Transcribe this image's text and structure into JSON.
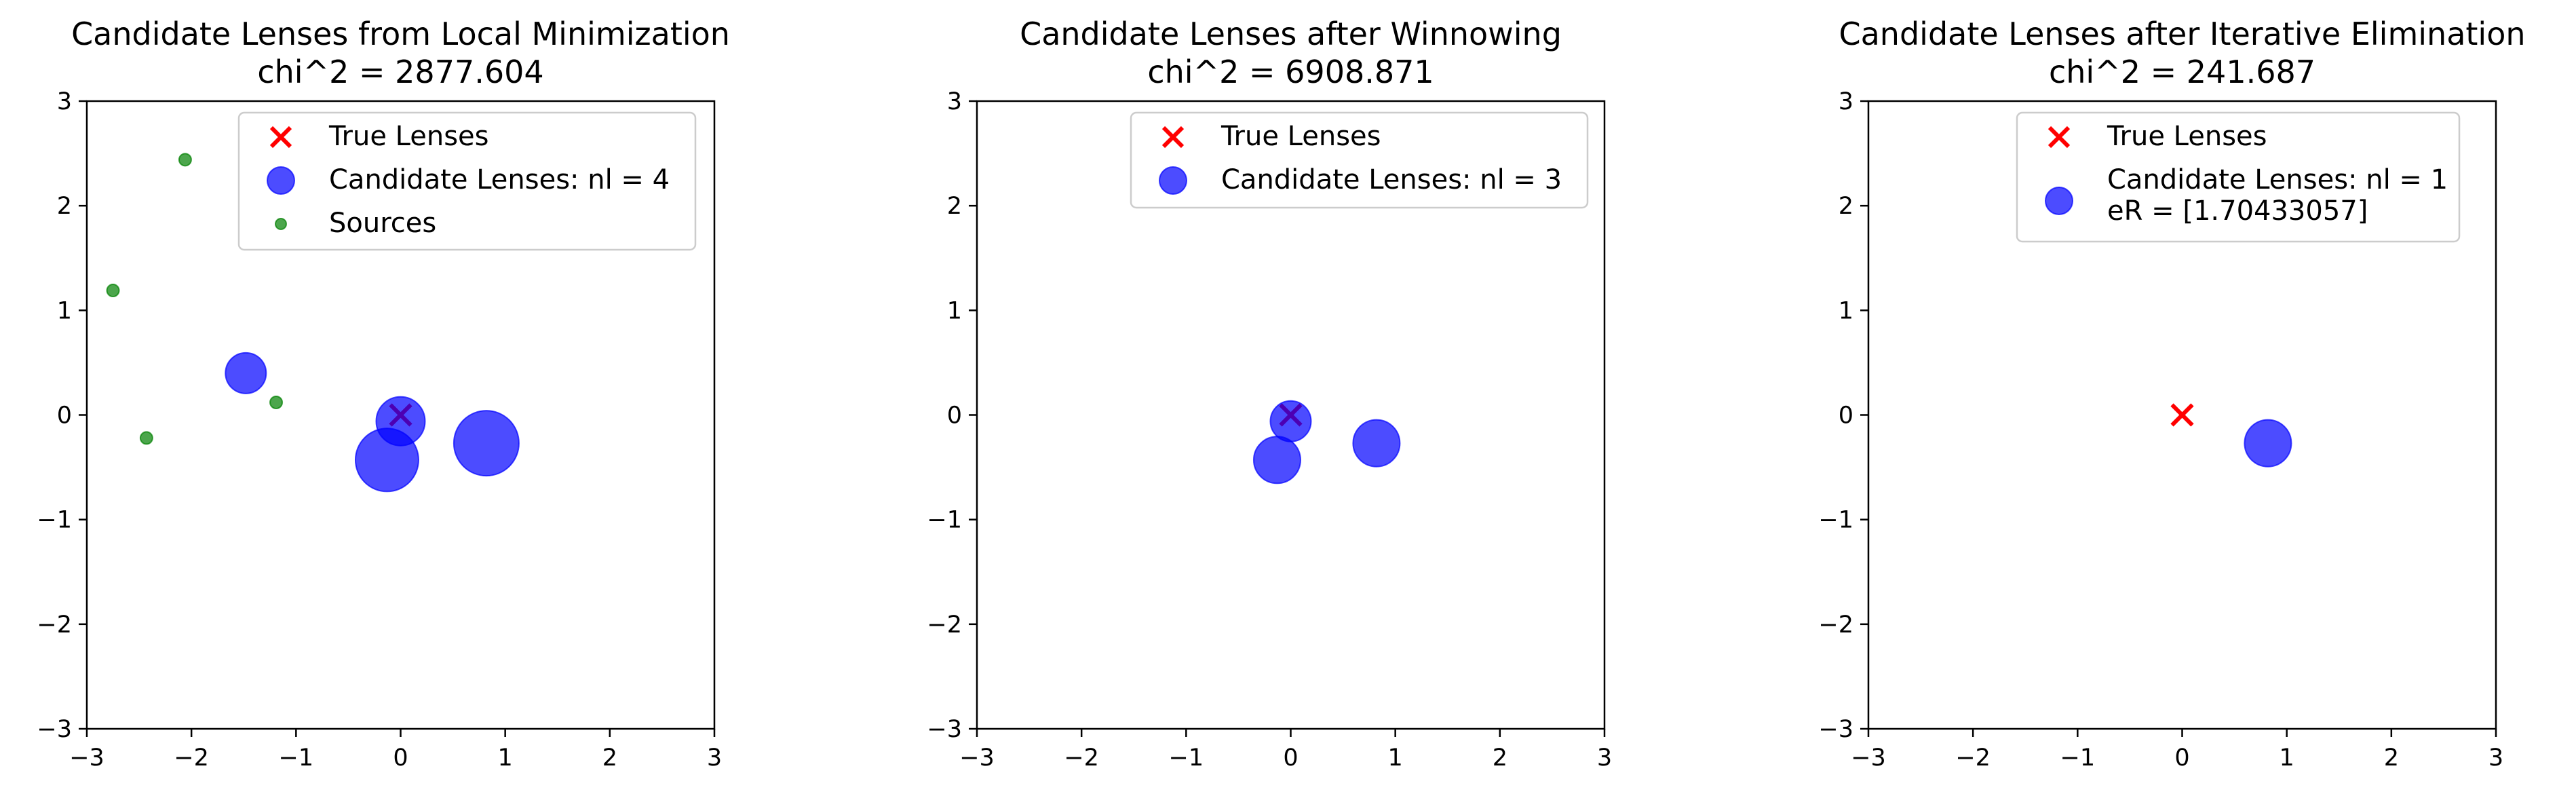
{
  "chart_data": [
    {
      "type": "scatter",
      "title": "Candidate Lenses from Local Minimization",
      "subtitle": "chi^2 = 2877.604",
      "xlim": [
        -3,
        3
      ],
      "ylim": [
        -3,
        3
      ],
      "xticks": [
        "−3",
        "−2",
        "−1",
        "0",
        "1",
        "2",
        "3"
      ],
      "yticks": [
        "−3",
        "−2",
        "−1",
        "0",
        "1",
        "2",
        "3"
      ],
      "grid": false,
      "legend_position": "top-right",
      "series": [
        {
          "name": "True Lenses",
          "marker": "x",
          "color": "#ff0000",
          "points": [
            {
              "x": 0.0,
              "y": 0.0
            }
          ]
        },
        {
          "name": "Candidate Lenses: nl = 4",
          "marker": "circle",
          "color": "#0000ff",
          "opacity": 0.7,
          "points": [
            {
              "x": -1.48,
              "y": 0.4,
              "size": 0.4
            },
            {
              "x": -0.13,
              "y": -0.43,
              "size": 0.95
            },
            {
              "x": 0.0,
              "y": -0.06,
              "size": 0.6
            },
            {
              "x": 0.82,
              "y": -0.27,
              "size": 1.0
            }
          ]
        },
        {
          "name": "Sources",
          "marker": "circle",
          "color": "#008000",
          "opacity": 0.7,
          "points": [
            {
              "x": -2.06,
              "y": 2.44
            },
            {
              "x": -2.75,
              "y": 1.19
            },
            {
              "x": -1.19,
              "y": 0.12
            },
            {
              "x": -2.43,
              "y": -0.22
            }
          ]
        }
      ]
    },
    {
      "type": "scatter",
      "title": "Candidate Lenses after Winnowing",
      "subtitle": "chi^2 = 6908.871",
      "xlim": [
        -3,
        3
      ],
      "ylim": [
        -3,
        3
      ],
      "xticks": [
        "−3",
        "−2",
        "−1",
        "0",
        "1",
        "2",
        "3"
      ],
      "yticks": [
        "−3",
        "−2",
        "−1",
        "0",
        "1",
        "2",
        "3"
      ],
      "grid": false,
      "legend_position": "top-right",
      "series": [
        {
          "name": "True Lenses",
          "marker": "x",
          "color": "#ff0000",
          "points": [
            {
              "x": 0.0,
              "y": 0.0
            }
          ]
        },
        {
          "name": "Candidate Lenses: nl = 3",
          "marker": "circle",
          "color": "#0000ff",
          "opacity": 0.7,
          "points": [
            {
              "x": -0.13,
              "y": -0.43,
              "size": 0.55
            },
            {
              "x": 0.0,
              "y": -0.06,
              "size": 0.4
            },
            {
              "x": 0.82,
              "y": -0.27,
              "size": 0.55
            }
          ]
        }
      ]
    },
    {
      "type": "scatter",
      "title": "Candidate Lenses after Iterative Elimination",
      "subtitle": "chi^2 = 241.687",
      "xlim": [
        -3,
        3
      ],
      "ylim": [
        -3,
        3
      ],
      "xticks": [
        "−3",
        "−2",
        "−1",
        "0",
        "1",
        "2",
        "3"
      ],
      "yticks": [
        "−3",
        "−2",
        "−1",
        "0",
        "1",
        "2",
        "3"
      ],
      "grid": false,
      "legend_position": "top-right",
      "series": [
        {
          "name": "True Lenses",
          "marker": "x",
          "color": "#ff0000",
          "points": [
            {
              "x": 0.0,
              "y": 0.0
            }
          ]
        },
        {
          "name": "Candidate Lenses: nl = 1\n eR = [1.70433057]",
          "marker": "circle",
          "color": "#0000ff",
          "opacity": 0.7,
          "points": [
            {
              "x": 0.82,
              "y": -0.27,
              "size": 0.55
            }
          ]
        }
      ]
    }
  ]
}
